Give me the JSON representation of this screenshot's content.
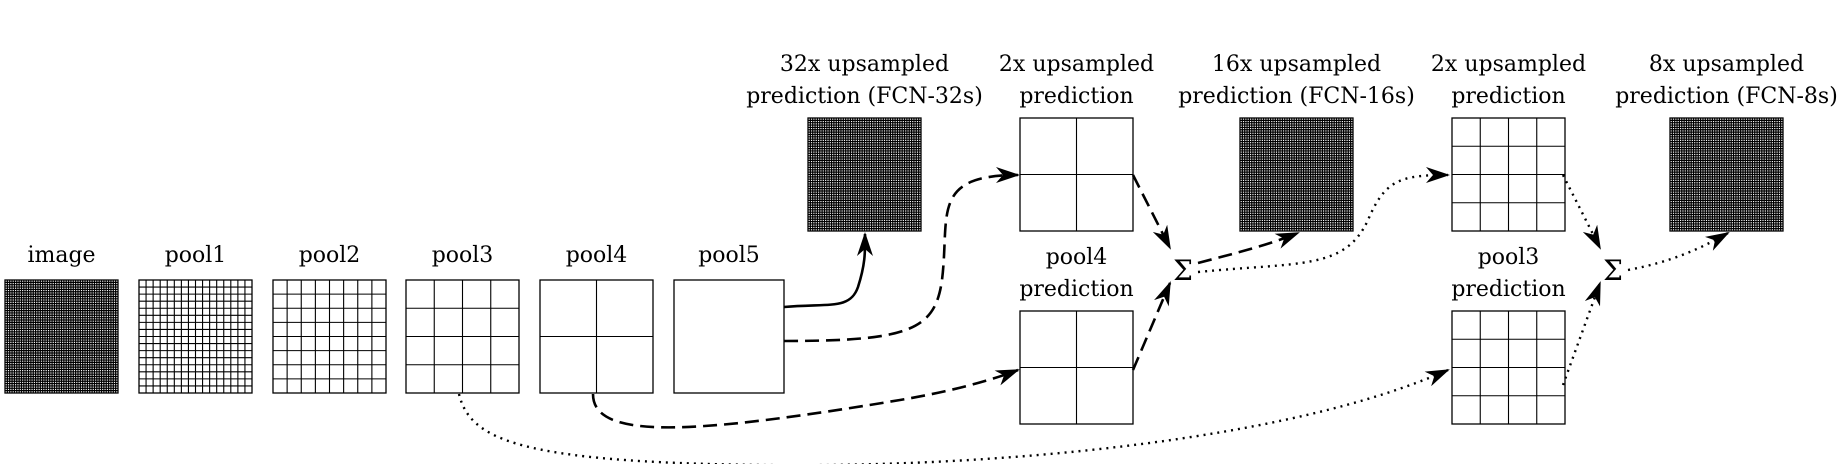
{
  "boxes": {
    "image": {
      "label": [
        "image"
      ],
      "grid": 48
    },
    "pool1": {
      "label": [
        "pool1"
      ],
      "grid": 16
    },
    "pool2": {
      "label": [
        "pool2"
      ],
      "grid": 8
    },
    "pool3": {
      "label": [
        "pool3"
      ],
      "grid": 4
    },
    "pool4": {
      "label": [
        "pool4"
      ],
      "grid": 2
    },
    "pool5": {
      "label": [
        "pool5"
      ],
      "grid": 1
    },
    "fcn32": {
      "label": [
        "32x upsampled",
        "prediction (FCN-32s)"
      ],
      "grid": 48
    },
    "up2a": {
      "label": [
        "2x upsampled",
        "prediction"
      ],
      "grid": 2
    },
    "pool4pred": {
      "label": [
        "pool4",
        "prediction"
      ],
      "grid": 2
    },
    "fcn16": {
      "label": [
        "16x upsampled",
        "prediction (FCN-16s)"
      ],
      "grid": 48
    },
    "up2b": {
      "label": [
        "2x upsampled",
        "prediction"
      ],
      "grid": 4
    },
    "pool3pred": {
      "label": [
        "pool3",
        "prediction"
      ],
      "grid": 4
    },
    "fcn8": {
      "label": [
        "8x upsampled",
        "prediction (FCN-8s)"
      ],
      "grid": 48
    }
  },
  "sum_symbol": "Σ"
}
